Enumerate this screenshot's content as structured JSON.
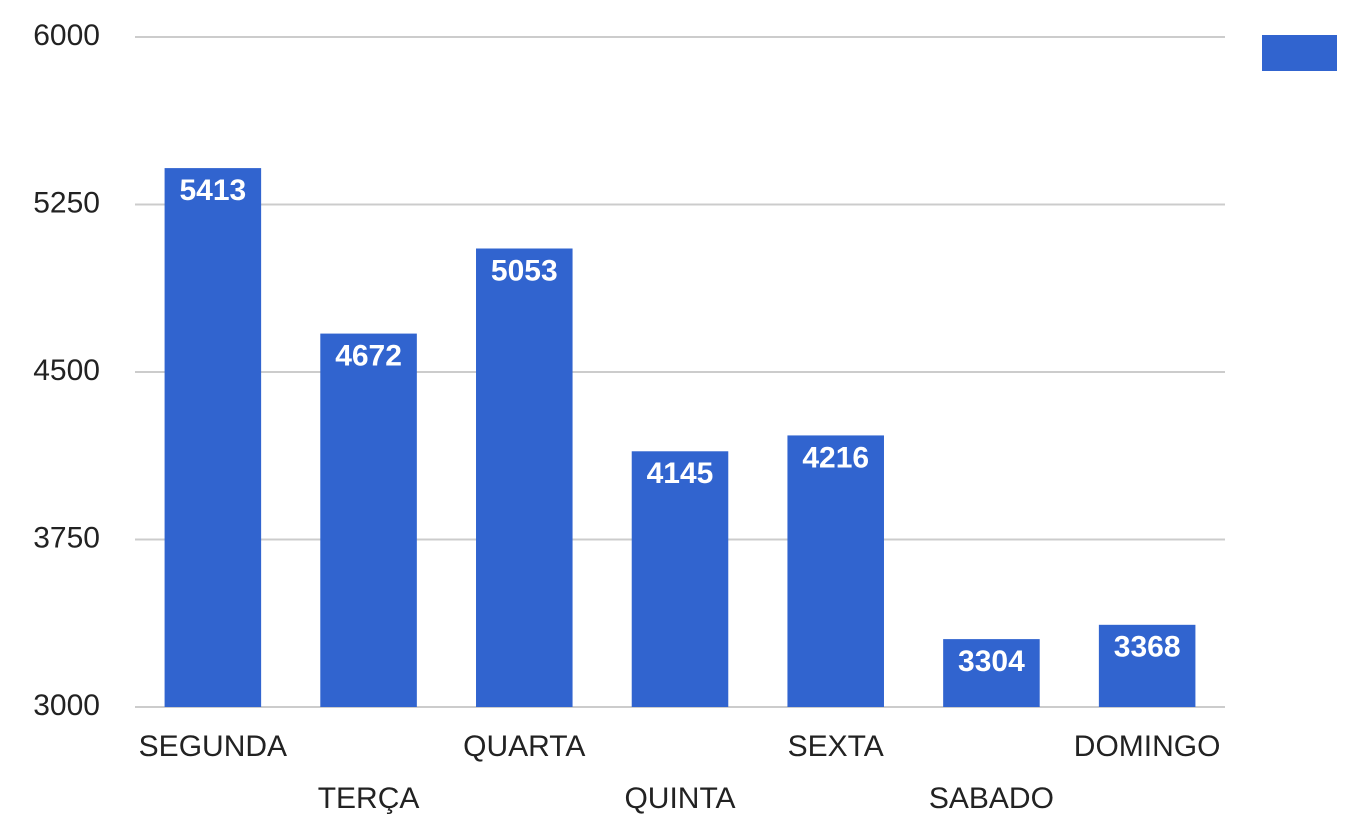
{
  "chart_data": {
    "type": "bar",
    "categories": [
      "SEGUNDA",
      "TERÇA",
      "QUARTA",
      "QUINTA",
      "SEXTA",
      "SABADO",
      "DOMINGO"
    ],
    "values": [
      5413,
      4672,
      5053,
      4145,
      4216,
      3304,
      3368
    ],
    "color": "#3164cf",
    "ylim": [
      3000,
      6000
    ],
    "yticks": [
      3000,
      3750,
      4500,
      5250,
      6000
    ],
    "grid": true
  }
}
